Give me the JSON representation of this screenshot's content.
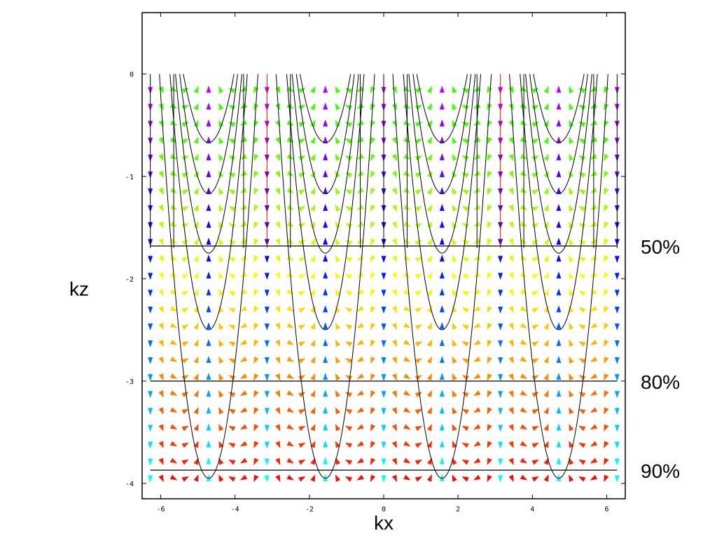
{
  "chart_data": {
    "type": "vector-field",
    "title": "",
    "xlabel": "kx",
    "ylabel": "kz",
    "xlim": [
      -6.5,
      6.5
    ],
    "ylim": [
      -4.15,
      0.6
    ],
    "x_ticks": [
      -6,
      -4,
      -2,
      0,
      2,
      4,
      6
    ],
    "y_ticks": [
      0,
      -1,
      -2,
      -3,
      -4
    ],
    "x_tick_labels": [
      "-6",
      "-4",
      "-2",
      "0",
      "2",
      "4",
      "6"
    ],
    "y_tick_labels": [
      "0",
      "-1",
      "-2",
      "-3",
      "-4"
    ],
    "contour_depths": [
      0.67,
      1.17,
      1.75,
      2.5,
      3.95
    ],
    "contour_period": 3.1416,
    "vertical_lines_x": [
      -6.28,
      -5.65,
      -3.77,
      -3.14,
      -2.51,
      -0.63,
      0,
      0.63,
      2.51,
      3.14,
      3.77,
      5.65,
      6.28
    ],
    "level_lines": [
      {
        "kz": -1.68,
        "label": "50%"
      },
      {
        "kz": -3.0,
        "label": "80%"
      },
      {
        "kz": -3.87,
        "label": "90%"
      }
    ],
    "grid": false,
    "legend": "none",
    "colors": {
      "frame": "#000000",
      "contour": "#000000",
      "arrow_scale": [
        "#ff0000",
        "#ff6a00",
        "#ffcc00",
        "#b0ff00",
        "#33ff33",
        "#00ffcc",
        "#00ccff",
        "#0000ff",
        "#8800ff",
        "#ff00aa",
        "#ff0000"
      ]
    }
  }
}
